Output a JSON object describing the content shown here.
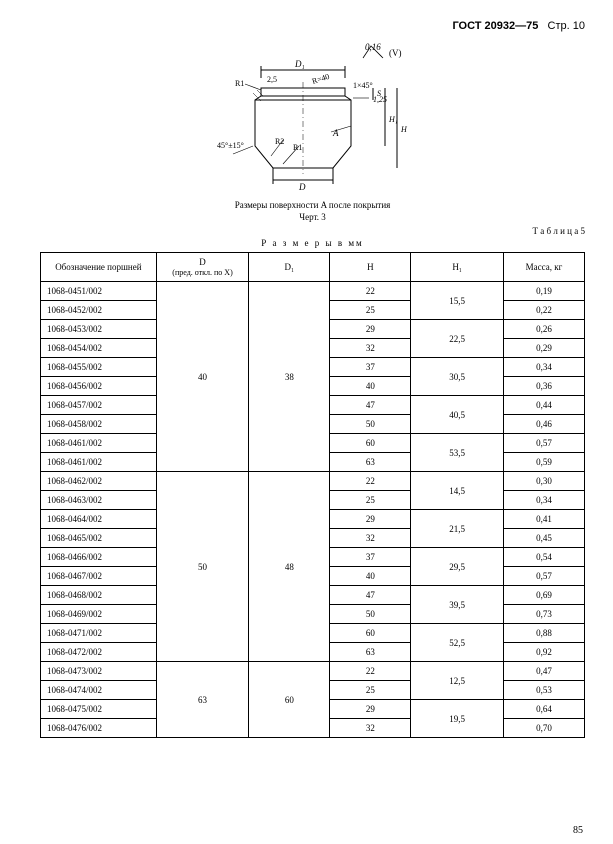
{
  "header": {
    "standard": "ГОСТ 20932—75",
    "page_label": "Стр. 10"
  },
  "diagram": {
    "surface_note_value": "0,16",
    "surface_note_check": "(V)",
    "dim_labels": [
      "D₁",
      "R1",
      "2.5",
      "R=40",
      "1×45°",
      "1,25",
      "S",
      "H₁",
      "H",
      "45°±15°",
      "R2",
      "R1",
      "A",
      "D"
    ],
    "caption_line1": "Размеры поверхности A после покрытия",
    "caption_line2": "Черт. 3"
  },
  "table": {
    "label": "Т а б л и ц а 5",
    "units": "Р а з м е р ы  в  мм",
    "columns": [
      "Обозначение поршней",
      "D\n(пред. откл. по X)",
      "D₁",
      "H",
      "H₁",
      "Масса, кг"
    ],
    "groups": [
      {
        "D": "40",
        "D1": "38",
        "pairs": [
          {
            "H1": "15,5",
            "rows": [
              {
                "d": "1068-0451/002",
                "H": "22",
                "m": "0,19"
              },
              {
                "d": "1068-0452/002",
                "H": "25",
                "m": "0,22"
              }
            ]
          },
          {
            "H1": "22,5",
            "rows": [
              {
                "d": "1068-0453/002",
                "H": "29",
                "m": "0,26"
              },
              {
                "d": "1068-0454/002",
                "H": "32",
                "m": "0,29"
              }
            ]
          },
          {
            "H1": "30,5",
            "rows": [
              {
                "d": "1068-0455/002",
                "H": "37",
                "m": "0,34"
              },
              {
                "d": "1068-0456/002",
                "H": "40",
                "m": "0,36"
              }
            ]
          },
          {
            "H1": "40,5",
            "rows": [
              {
                "d": "1068-0457/002",
                "H": "47",
                "m": "0,44"
              },
              {
                "d": "1068-0458/002",
                "H": "50",
                "m": "0,46"
              }
            ]
          },
          {
            "H1": "53,5",
            "rows": [
              {
                "d": "1068-0461/002",
                "H": "60",
                "m": "0,57"
              },
              {
                "d": "1068-0461/002",
                "H": "63",
                "m": "0,59"
              }
            ]
          }
        ]
      },
      {
        "D": "50",
        "D1": "48",
        "pairs": [
          {
            "H1": "14,5",
            "rows": [
              {
                "d": "1068-0462/002",
                "H": "22",
                "m": "0,30"
              },
              {
                "d": "1068-0463/002",
                "H": "25",
                "m": "0,34"
              }
            ]
          },
          {
            "H1": "21,5",
            "rows": [
              {
                "d": "1068-0464/002",
                "H": "29",
                "m": "0,41"
              },
              {
                "d": "1068-0465/002",
                "H": "32",
                "m": "0,45"
              }
            ]
          },
          {
            "H1": "29,5",
            "rows": [
              {
                "d": "1068-0466/002",
                "H": "37",
                "m": "0,54"
              },
              {
                "d": "1068-0467/002",
                "H": "40",
                "m": "0,57"
              }
            ]
          },
          {
            "H1": "39,5",
            "rows": [
              {
                "d": "1068-0468/002",
                "H": "47",
                "m": "0,69"
              },
              {
                "d": "1068-0469/002",
                "H": "50",
                "m": "0,73"
              }
            ]
          },
          {
            "H1": "52,5",
            "rows": [
              {
                "d": "1068-0471/002",
                "H": "60",
                "m": "0,88"
              },
              {
                "d": "1068-0472/002",
                "H": "63",
                "m": "0,92"
              }
            ]
          }
        ]
      },
      {
        "D": "63",
        "D1": "60",
        "pairs": [
          {
            "H1": "12,5",
            "rows": [
              {
                "d": "1068-0473/002",
                "H": "22",
                "m": "0,47"
              },
              {
                "d": "1068-0474/002",
                "H": "25",
                "m": "0,53"
              }
            ]
          },
          {
            "H1": "19,5",
            "rows": [
              {
                "d": "1068-0475/002",
                "H": "29",
                "m": "0,64"
              },
              {
                "d": "1068-0476/002",
                "H": "32",
                "m": "0,70"
              }
            ]
          }
        ]
      }
    ]
  },
  "footer": {
    "page_number": "85"
  },
  "style": {
    "page_bg": "#ffffff",
    "text_color": "#000000",
    "border_color": "#000000",
    "header_fontsize": 11,
    "body_fontsize": 9
  }
}
